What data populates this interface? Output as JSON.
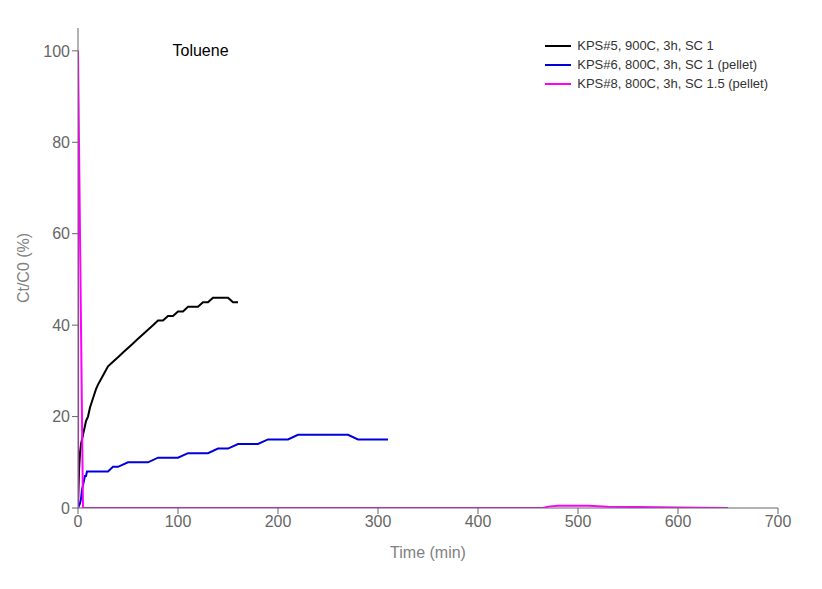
{
  "chart_data": {
    "type": "line",
    "title": "Toluene",
    "xlabel": "Time (min)",
    "ylabel": "Ct/C0 (%)",
    "xlim": [
      0,
      700
    ],
    "ylim": [
      0,
      105
    ],
    "xticks": [
      0,
      100,
      200,
      300,
      400,
      500,
      600,
      700
    ],
    "yticks": [
      0,
      20,
      40,
      60,
      80,
      100
    ],
    "grid": false,
    "legend": "upper right",
    "series": [
      {
        "name": "KPS#5, 900C, 3h, SC 1",
        "color": "#000000",
        "x": [
          0,
          1,
          2,
          3,
          4,
          5,
          6,
          7,
          8,
          10,
          12,
          15,
          18,
          20,
          25,
          30,
          35,
          40,
          45,
          50,
          55,
          60,
          65,
          70,
          75,
          80,
          85,
          90,
          95,
          100,
          105,
          110,
          115,
          120,
          125,
          130,
          135,
          140,
          145,
          150,
          155,
          160
        ],
        "values": [
          0,
          8,
          12,
          14,
          15,
          16,
          17,
          18,
          19,
          20,
          22,
          24,
          26,
          27,
          29,
          31,
          32,
          33,
          34,
          35,
          36,
          37,
          38,
          39,
          40,
          41,
          41,
          42,
          42,
          43,
          43,
          44,
          44,
          44,
          45,
          45,
          46,
          46,
          46,
          46,
          45,
          45
        ]
      },
      {
        "name": "KPS#6, 800C, 3h, SC 1 (pellet)",
        "color": "#0000dd",
        "x": [
          0,
          2,
          3,
          4,
          5,
          6,
          7,
          8,
          9,
          10,
          12,
          14,
          16,
          18,
          20,
          25,
          30,
          35,
          40,
          50,
          60,
          70,
          80,
          90,
          100,
          110,
          120,
          130,
          140,
          150,
          160,
          170,
          180,
          190,
          200,
          210,
          220,
          230,
          240,
          250,
          260,
          270,
          280,
          290,
          300,
          310
        ],
        "values": [
          0,
          1,
          2,
          4,
          5,
          6,
          7,
          7,
          8,
          8,
          8,
          8,
          8,
          8,
          8,
          8,
          8,
          9,
          9,
          10,
          10,
          10,
          11,
          11,
          11,
          12,
          12,
          12,
          13,
          13,
          14,
          14,
          14,
          15,
          15,
          15,
          16,
          16,
          16,
          16,
          16,
          16,
          15,
          15,
          15,
          15
        ]
      },
      {
        "name": "KPS#8, 800C, 3h, SC 1.5 (pellet)",
        "color": "#ff00ff",
        "x": [
          0,
          0,
          5,
          10,
          20,
          30,
          50,
          100,
          200,
          300,
          400,
          465,
          470,
          480,
          490,
          500,
          510,
          520,
          530,
          560,
          600,
          650
        ],
        "values": [
          0,
          100,
          0,
          0,
          0,
          0,
          0,
          0,
          0,
          0,
          0,
          0,
          0.3,
          0.5,
          0.5,
          0.5,
          0.5,
          0.4,
          0.3,
          0.2,
          0.1,
          0
        ]
      }
    ]
  }
}
